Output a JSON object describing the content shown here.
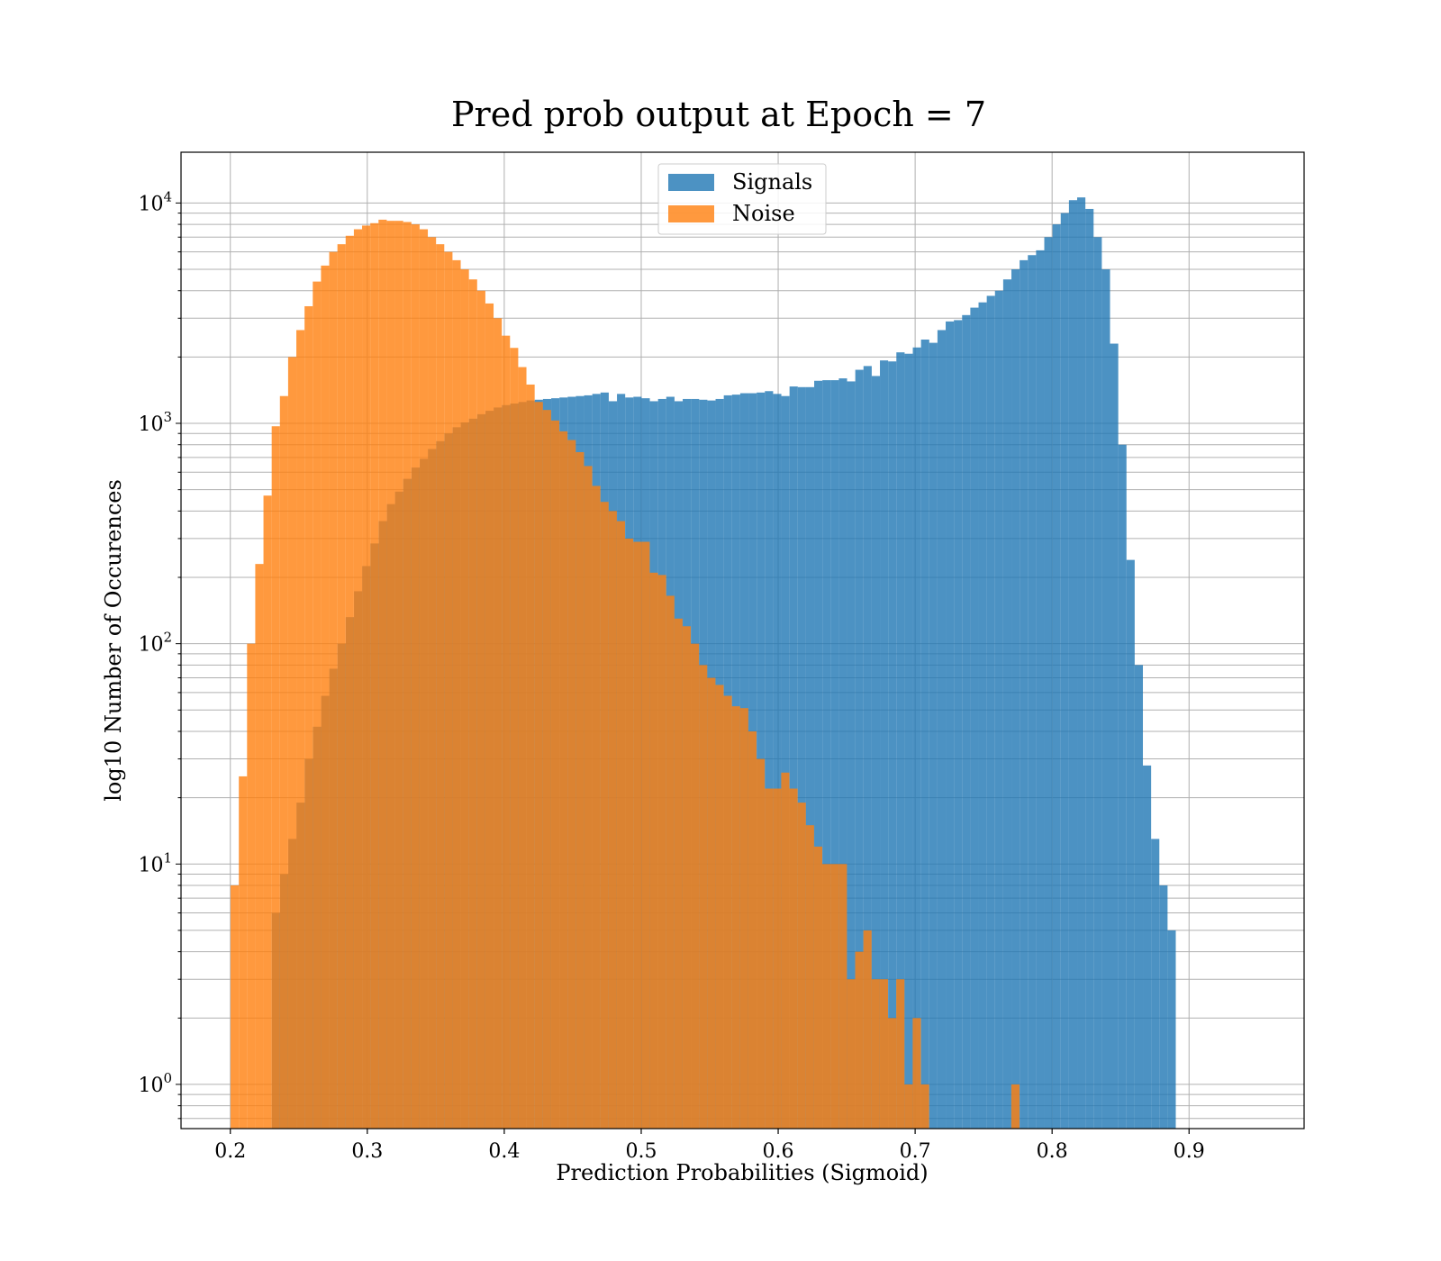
{
  "colors": {
    "signals": "#1f77b4",
    "noise": "#ff7f0e",
    "grid": "#b0b0b0",
    "background": "#ffffff"
  },
  "chart_data": {
    "type": "bar",
    "title": "Pred prob output at Epoch = 7",
    "xlabel": "Prediction Probabilities (Sigmoid)",
    "ylabel": "log10 Number of Occurences",
    "y_scale": "log",
    "xlim": [
      0.164,
      0.984
    ],
    "ylim": [
      0.63,
      17000
    ],
    "x_ticks": [
      0.2,
      0.3,
      0.4,
      0.5,
      0.6,
      0.7,
      0.8,
      0.9
    ],
    "x_tick_labels": [
      "0.2",
      "0.3",
      "0.4",
      "0.5",
      "0.6",
      "0.7",
      "0.8",
      "0.9"
    ],
    "y_ticks": [
      1,
      10,
      100,
      1000,
      10000
    ],
    "y_tick_labels": [
      {
        "base": "10",
        "exp": "0"
      },
      {
        "base": "10",
        "exp": "1"
      },
      {
        "base": "10",
        "exp": "2"
      },
      {
        "base": "10",
        "exp": "3"
      },
      {
        "base": "10",
        "exp": "4"
      }
    ],
    "grid": true,
    "legend_position": "top-center",
    "bar_opacity": 0.8,
    "series": [
      {
        "name": "Signals",
        "color": "#1f77b4",
        "x_start": 0.2303,
        "bin_width": 0.006,
        "values": [
          6,
          9,
          13,
          19,
          30,
          42,
          58,
          77,
          100,
          132,
          173,
          225,
          285,
          360,
          430,
          490,
          560,
          630,
          690,
          765,
          830,
          900,
          960,
          1010,
          1050,
          1100,
          1140,
          1180,
          1210,
          1230,
          1250,
          1270,
          1280,
          1290,
          1300,
          1310,
          1320,
          1330,
          1340,
          1360,
          1380,
          1260,
          1360,
          1310,
          1320,
          1300,
          1260,
          1290,
          1320,
          1260,
          1290,
          1290,
          1280,
          1270,
          1290,
          1340,
          1350,
          1370,
          1370,
          1380,
          1400,
          1360,
          1330,
          1470,
          1460,
          1460,
          1560,
          1570,
          1570,
          1600,
          1550,
          1750,
          1820,
          1640,
          1930,
          1910,
          2100,
          2070,
          2210,
          2400,
          2320,
          2650,
          2900,
          2940,
          3100,
          3350,
          3540,
          3790,
          4000,
          4500,
          5000,
          5500,
          5800,
          6100,
          7000,
          8000,
          9000,
          10300,
          10600,
          9400,
          7000,
          5000,
          2300,
          800,
          240,
          80,
          28,
          13,
          8,
          5
        ]
      },
      {
        "name": "Noise",
        "color": "#ff7f0e",
        "x_start": 0.2002,
        "bin_width": 0.006,
        "values": [
          8,
          25,
          100,
          230,
          470,
          970,
          1330,
          2000,
          2650,
          3400,
          4400,
          5200,
          6000,
          6500,
          7100,
          7600,
          7900,
          8100,
          8400,
          8300,
          8300,
          8200,
          8000,
          7600,
          7000,
          6500,
          6000,
          5500,
          5000,
          4500,
          4000,
          3500,
          3000,
          2500,
          2200,
          1800,
          1500,
          1250,
          1150,
          1030,
          920,
          840,
          740,
          640,
          520,
          440,
          400,
          360,
          300,
          290,
          290,
          210,
          205,
          165,
          130,
          120,
          100,
          80,
          70,
          65,
          58,
          52,
          51,
          40,
          30,
          22,
          22,
          26,
          22,
          19,
          15,
          12,
          10,
          10,
          10,
          3,
          4,
          5,
          3,
          3,
          2,
          3,
          1,
          2,
          1,
          0,
          0,
          0,
          0,
          0,
          0,
          0,
          0,
          0,
          0,
          1
        ]
      }
    ]
  }
}
